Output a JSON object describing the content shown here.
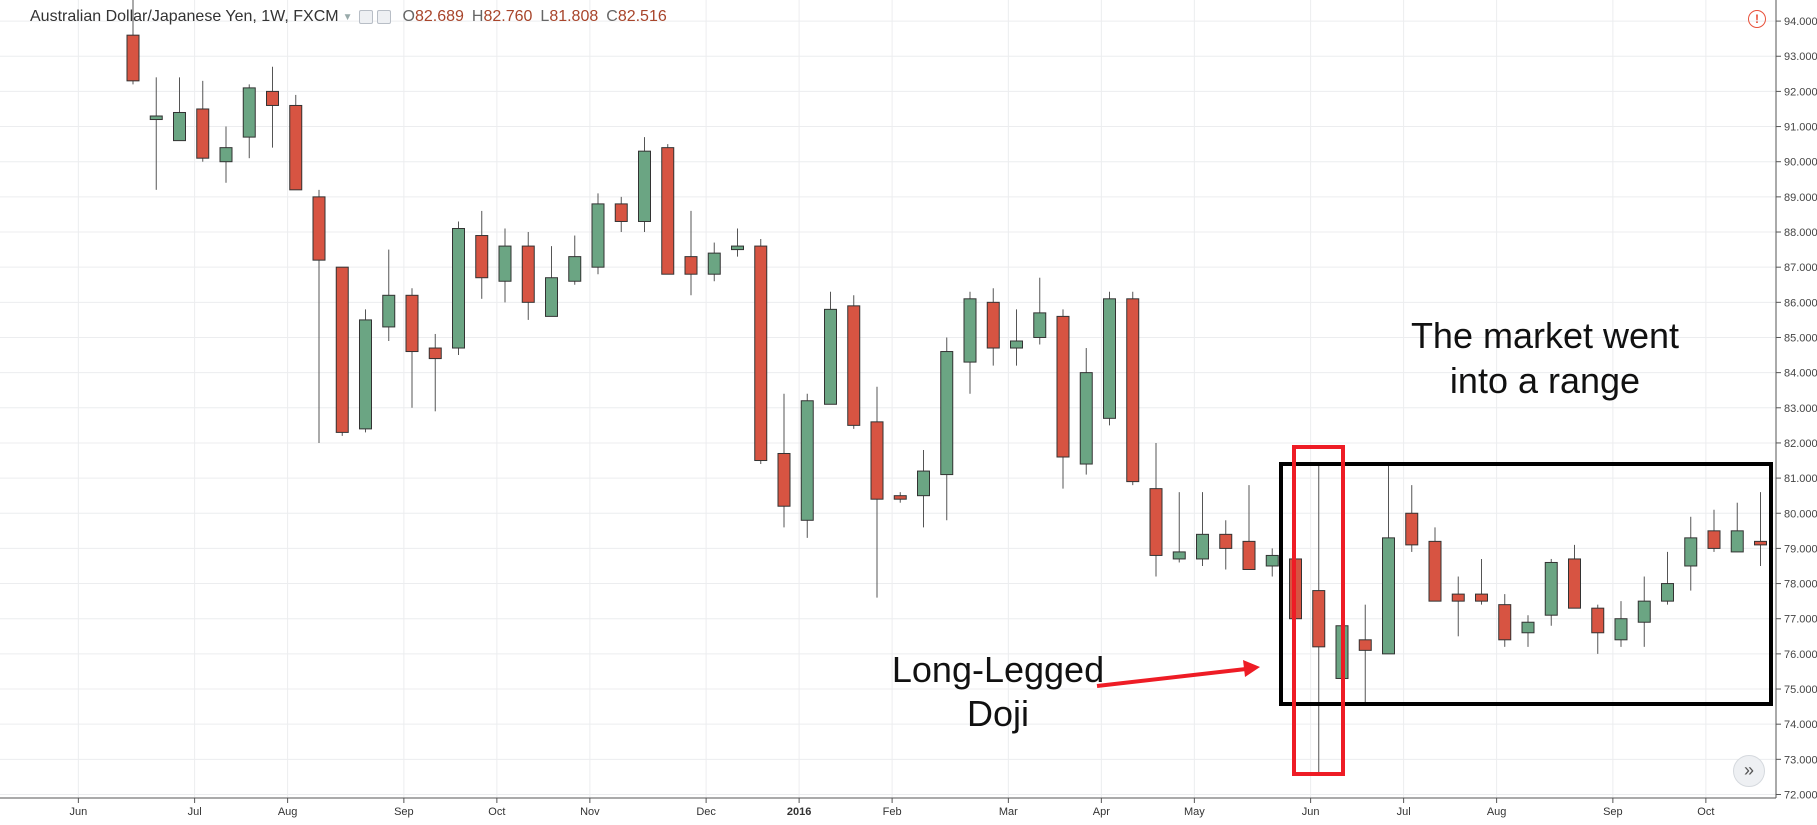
{
  "header": {
    "title": "Australian Dollar/Japanese Yen, 1W, FXCM",
    "open_label": "O",
    "open": "82.689",
    "high_label": "H",
    "high": "82.760",
    "low_label": "L",
    "low": "81.808",
    "close_label": "C",
    "close": "82.516"
  },
  "colors": {
    "up": "#6ba583",
    "down": "#d75442",
    "grid": "#ecedef",
    "doji_box": "#ee1c25",
    "range_box": "#000000"
  },
  "annotations": {
    "range_text_line1": "The market went",
    "range_text_line2": "into a range",
    "doji_text_line1": "Long-Legged",
    "doji_text_line2": "Doji"
  },
  "chart_data": {
    "type": "candlestick",
    "y_ticks": [
      "94.000",
      "93.000",
      "92.000",
      "91.000",
      "90.000",
      "89.000",
      "88.000",
      "87.000",
      "86.000",
      "85.000",
      "84.000",
      "83.000",
      "82.000",
      "81.000",
      "80.000",
      "79.000",
      "78.000",
      "77.000",
      "76.000",
      "75.000",
      "74.000",
      "73.000",
      "72.000"
    ],
    "ylim": [
      71.9,
      94.6
    ],
    "month_labels": [
      {
        "label": "Jun",
        "index": -2
      },
      {
        "label": "Jul",
        "index": 3
      },
      {
        "label": "Aug",
        "index": 7
      },
      {
        "label": "Sep",
        "index": 12
      },
      {
        "label": "Oct",
        "index": 16
      },
      {
        "label": "Nov",
        "index": 20
      },
      {
        "label": "Dec",
        "index": 25
      },
      {
        "label": "2016",
        "index": 29,
        "bold": true
      },
      {
        "label": "Feb",
        "index": 33
      },
      {
        "label": "Mar",
        "index": 38
      },
      {
        "label": "Apr",
        "index": 42
      },
      {
        "label": "May",
        "index": 46
      },
      {
        "label": "Jun",
        "index": 51
      },
      {
        "label": "Jul",
        "index": 55
      },
      {
        "label": "Aug",
        "index": 59
      },
      {
        "label": "Sep",
        "index": 64
      },
      {
        "label": "Oct",
        "index": 68
      }
    ],
    "candles": [
      {
        "o": 93.6,
        "h": 94.6,
        "l": 92.2,
        "c": 92.3
      },
      {
        "o": 91.2,
        "h": 92.4,
        "l": 89.2,
        "c": 91.3
      },
      {
        "o": 90.6,
        "h": 92.4,
        "l": 90.6,
        "c": 91.4
      },
      {
        "o": 91.5,
        "h": 92.3,
        "l": 90.0,
        "c": 90.1
      },
      {
        "o": 90.0,
        "h": 91.0,
        "l": 89.4,
        "c": 90.4
      },
      {
        "o": 90.7,
        "h": 92.2,
        "l": 90.1,
        "c": 92.1
      },
      {
        "o": 92.0,
        "h": 92.7,
        "l": 90.4,
        "c": 91.6
      },
      {
        "o": 91.6,
        "h": 91.9,
        "l": 89.2,
        "c": 89.2
      },
      {
        "o": 89.0,
        "h": 89.2,
        "l": 82.0,
        "c": 87.2
      },
      {
        "o": 87.0,
        "h": 87.0,
        "l": 82.2,
        "c": 82.3
      },
      {
        "o": 82.4,
        "h": 85.8,
        "l": 82.3,
        "c": 85.5
      },
      {
        "o": 85.3,
        "h": 87.5,
        "l": 84.9,
        "c": 86.2
      },
      {
        "o": 86.2,
        "h": 86.4,
        "l": 83.0,
        "c": 84.6
      },
      {
        "o": 84.7,
        "h": 85.1,
        "l": 82.9,
        "c": 84.4
      },
      {
        "o": 84.7,
        "h": 88.3,
        "l": 84.5,
        "c": 88.1
      },
      {
        "o": 87.9,
        "h": 88.6,
        "l": 86.1,
        "c": 86.7
      },
      {
        "o": 86.6,
        "h": 88.1,
        "l": 86.0,
        "c": 87.6
      },
      {
        "o": 87.6,
        "h": 88.0,
        "l": 85.5,
        "c": 86.0
      },
      {
        "o": 85.6,
        "h": 87.6,
        "l": 85.6,
        "c": 86.7
      },
      {
        "o": 86.6,
        "h": 87.9,
        "l": 86.5,
        "c": 87.3
      },
      {
        "o": 87.0,
        "h": 89.1,
        "l": 86.8,
        "c": 88.8
      },
      {
        "o": 88.8,
        "h": 89.0,
        "l": 88.0,
        "c": 88.3
      },
      {
        "o": 88.3,
        "h": 90.7,
        "l": 88.0,
        "c": 90.3
      },
      {
        "o": 90.4,
        "h": 90.5,
        "l": 86.8,
        "c": 86.8
      },
      {
        "o": 87.3,
        "h": 88.6,
        "l": 86.2,
        "c": 86.8
      },
      {
        "o": 86.8,
        "h": 87.7,
        "l": 86.6,
        "c": 87.4
      },
      {
        "o": 87.5,
        "h": 88.1,
        "l": 87.3,
        "c": 87.6
      },
      {
        "o": 87.6,
        "h": 87.8,
        "l": 81.4,
        "c": 81.5
      },
      {
        "o": 81.7,
        "h": 83.4,
        "l": 79.6,
        "c": 80.2
      },
      {
        "o": 79.8,
        "h": 83.4,
        "l": 79.3,
        "c": 83.2
      },
      {
        "o": 83.1,
        "h": 86.3,
        "l": 83.1,
        "c": 85.8
      },
      {
        "o": 85.9,
        "h": 86.2,
        "l": 82.4,
        "c": 82.5
      },
      {
        "o": 82.6,
        "h": 83.6,
        "l": 77.6,
        "c": 80.4
      },
      {
        "o": 80.5,
        "h": 80.6,
        "l": 80.3,
        "c": 80.4
      },
      {
        "o": 80.5,
        "h": 81.8,
        "l": 79.6,
        "c": 81.2
      },
      {
        "o": 81.1,
        "h": 85.0,
        "l": 79.8,
        "c": 84.6
      },
      {
        "o": 84.3,
        "h": 86.3,
        "l": 83.4,
        "c": 86.1
      },
      {
        "o": 86.0,
        "h": 86.4,
        "l": 84.2,
        "c": 84.7
      },
      {
        "o": 84.7,
        "h": 85.8,
        "l": 84.2,
        "c": 84.9
      },
      {
        "o": 85.0,
        "h": 86.7,
        "l": 84.8,
        "c": 85.7
      },
      {
        "o": 85.6,
        "h": 85.8,
        "l": 80.7,
        "c": 81.6
      },
      {
        "o": 81.4,
        "h": 84.7,
        "l": 81.1,
        "c": 84.0
      },
      {
        "o": 82.7,
        "h": 86.3,
        "l": 82.5,
        "c": 86.1
      },
      {
        "o": 86.1,
        "h": 86.3,
        "l": 80.8,
        "c": 80.9
      },
      {
        "o": 80.7,
        "h": 82.0,
        "l": 78.2,
        "c": 78.8
      },
      {
        "o": 78.7,
        "h": 80.6,
        "l": 78.6,
        "c": 78.9
      },
      {
        "o": 78.7,
        "h": 80.6,
        "l": 78.5,
        "c": 79.4
      },
      {
        "o": 79.4,
        "h": 79.8,
        "l": 78.4,
        "c": 79.0
      },
      {
        "o": 79.2,
        "h": 80.8,
        "l": 78.4,
        "c": 78.4
      },
      {
        "o": 78.5,
        "h": 79.0,
        "l": 78.2,
        "c": 78.8
      },
      {
        "o": 78.7,
        "h": 80.3,
        "l": 77.0,
        "c": 77.0
      },
      {
        "o": 77.8,
        "h": 81.4,
        "l": 72.6,
        "c": 76.2
      },
      {
        "o": 75.3,
        "h": 77.0,
        "l": 74.9,
        "c": 76.8
      },
      {
        "o": 76.4,
        "h": 77.4,
        "l": 74.6,
        "c": 76.1
      },
      {
        "o": 76.0,
        "h": 81.4,
        "l": 76.0,
        "c": 79.3
      },
      {
        "o": 80.0,
        "h": 80.8,
        "l": 78.9,
        "c": 79.1
      },
      {
        "o": 79.2,
        "h": 79.6,
        "l": 77.5,
        "c": 77.5
      },
      {
        "o": 77.7,
        "h": 78.2,
        "l": 76.5,
        "c": 77.5
      },
      {
        "o": 77.7,
        "h": 78.7,
        "l": 77.4,
        "c": 77.5
      },
      {
        "o": 77.4,
        "h": 77.7,
        "l": 76.2,
        "c": 76.4
      },
      {
        "o": 76.6,
        "h": 77.1,
        "l": 76.2,
        "c": 76.9
      },
      {
        "o": 77.1,
        "h": 78.7,
        "l": 76.8,
        "c": 78.6
      },
      {
        "o": 78.7,
        "h": 79.1,
        "l": 77.3,
        "c": 77.3
      },
      {
        "o": 77.3,
        "h": 77.4,
        "l": 76.0,
        "c": 76.6
      },
      {
        "o": 76.4,
        "h": 77.5,
        "l": 76.2,
        "c": 77.0
      },
      {
        "o": 76.9,
        "h": 78.2,
        "l": 76.2,
        "c": 77.5
      },
      {
        "o": 77.5,
        "h": 78.9,
        "l": 77.4,
        "c": 78.0
      },
      {
        "o": 78.5,
        "h": 79.9,
        "l": 77.8,
        "c": 79.3
      },
      {
        "o": 79.5,
        "h": 80.1,
        "l": 78.9,
        "c": 79.0
      },
      {
        "o": 78.9,
        "h": 80.3,
        "l": 78.9,
        "c": 79.5
      },
      {
        "o": 79.2,
        "h": 80.6,
        "l": 78.5,
        "c": 79.1
      }
    ]
  }
}
